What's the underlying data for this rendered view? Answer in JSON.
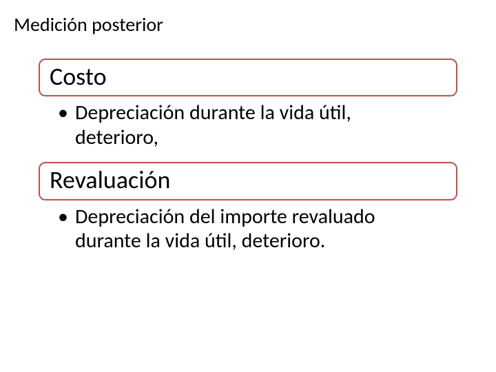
{
  "slide": {
    "title": "Medición posterior",
    "title_fontsize": 28,
    "background_color": "#ffffff",
    "text_color": "#000000",
    "font_family": "Calibri",
    "sections": [
      {
        "heading": "Costo",
        "heading_fontsize": 36,
        "heading_border_color": "#c0504d",
        "heading_border_width": 2,
        "heading_border_radius": 10,
        "bullet_marker": "•",
        "bullet_text": "Depreciación durante la vida útil, deterioro,",
        "bullet_fontsize": 30
      },
      {
        "heading": "Revaluación",
        "heading_fontsize": 36,
        "heading_border_color": "#c0504d",
        "heading_border_width": 2,
        "heading_border_radius": 10,
        "bullet_marker": "•",
        "bullet_text": "Depreciación del importe revaluado durante la vida útil, deterioro.",
        "bullet_fontsize": 30
      }
    ]
  }
}
